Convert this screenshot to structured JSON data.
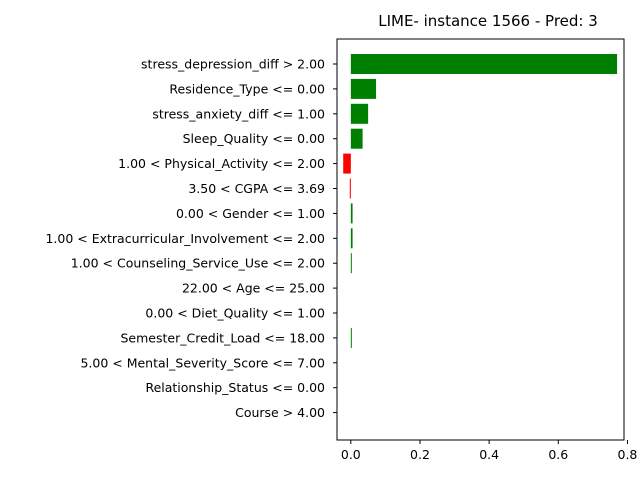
{
  "chart_data": {
    "type": "bar",
    "orientation": "horizontal",
    "title": "LIME- instance 1566 - Pred: 3",
    "xlabel": "",
    "ylabel": "",
    "xlim": [
      -0.04,
      0.79
    ],
    "xticks": [
      0.0,
      0.2,
      0.4,
      0.6,
      0.8
    ],
    "xtick_labels": [
      "0.0",
      "0.2",
      "0.4",
      "0.6",
      "0.8"
    ],
    "grid": false,
    "legend": "none",
    "positive_color": "#008000",
    "negative_color": "#ff0000",
    "categories": [
      "stress_depression_diff > 2.00",
      "Residence_Type <= 0.00",
      "stress_anxiety_diff <= 1.00",
      "Sleep_Quality <= 0.00",
      "1.00 < Physical_Activity <= 2.00",
      "3.50 < CGPA <= 3.69",
      "0.00 < Gender <= 1.00",
      "1.00 < Extracurricular_Involvement <= 2.00",
      "1.00 < Counseling_Service_Use <= 2.00",
      "22.00 < Age <= 25.00",
      "0.00 < Diet_Quality <= 1.00",
      "Semester_Credit_Load <= 18.00",
      "5.00 < Mental_Severity_Score <= 7.00",
      "Relationship_Status <= 0.00",
      "Course > 4.00"
    ],
    "values": [
      0.77,
      0.073,
      0.05,
      0.034,
      -0.022,
      -0.003,
      0.005,
      0.005,
      0.002,
      0.0,
      0.0,
      0.001,
      0.0,
      0.0,
      0.0
    ]
  }
}
